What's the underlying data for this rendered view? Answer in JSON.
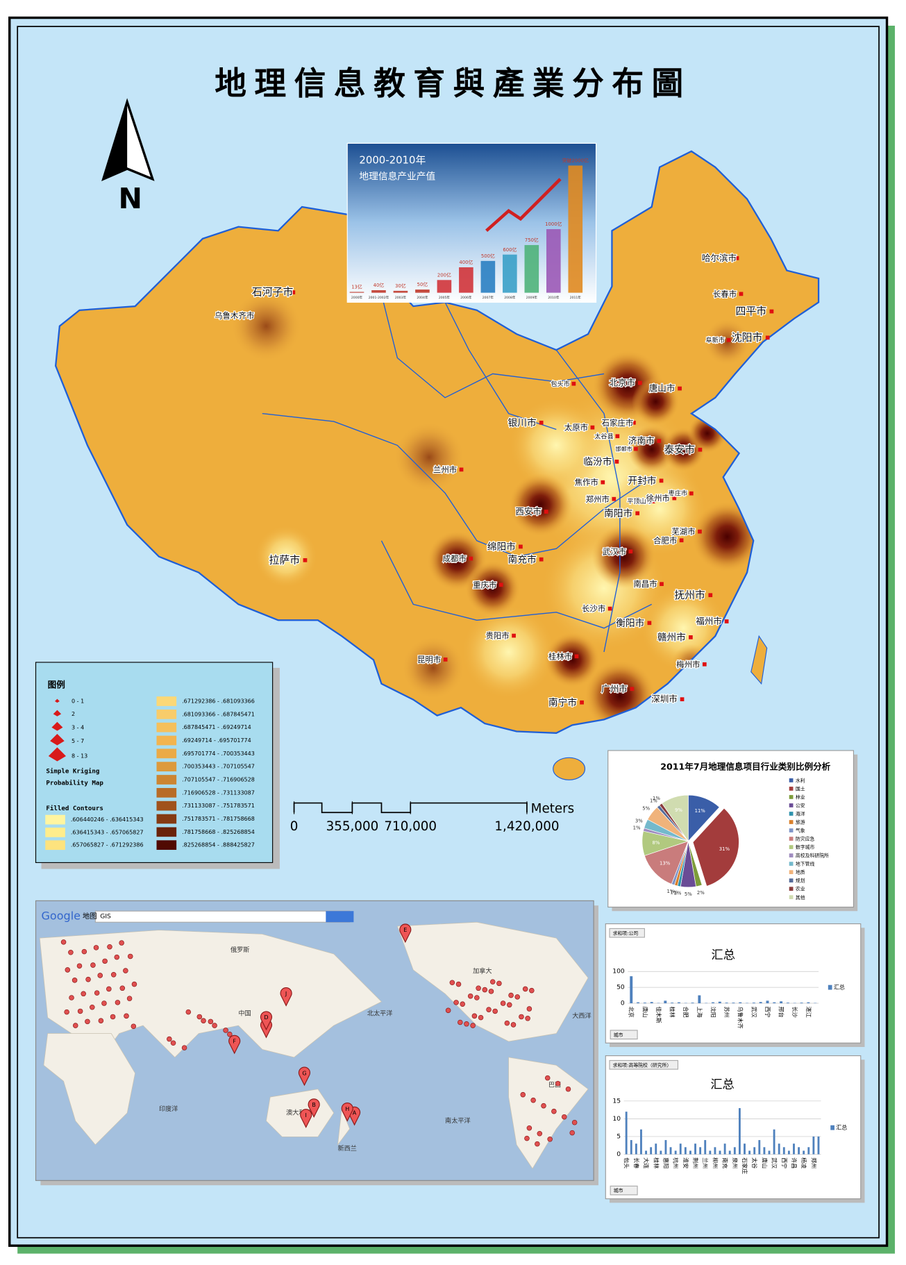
{
  "title": "地理信息教育與產業分布圖",
  "north": "N",
  "cities": [
    "石河子市",
    "乌鲁木齐市",
    "拉萨市",
    "哈尔滨市",
    "长春市",
    "四平市",
    "沈阳市",
    "阜新市",
    "北京市",
    "唐山市",
    "包头市",
    "银川市",
    "太原市",
    "石家庄市",
    "太谷县",
    "济南市",
    "邯郸市",
    "泰安市",
    "兰州市",
    "临汾市",
    "开封市",
    "焦作市",
    "郑州市",
    "平顶山市",
    "徐州市",
    "枣庄市",
    "西安市",
    "南阳市",
    "芜湖市",
    "成都市",
    "绵阳市",
    "南充市",
    "合肥市",
    "武汉市",
    "重庆市",
    "南昌市",
    "抚州市",
    "长沙市",
    "衡阳市",
    "福州市",
    "贵阳市",
    "赣州市",
    "昆明市",
    "桂林市",
    "梅州市",
    "广州市",
    "深圳市",
    "南宁市"
  ],
  "inset_output": {
    "title": "2000-2010年",
    "subtitle": "地理信息产业产值",
    "years": [
      "2000年",
      "2001-2002年",
      "2003年",
      "2004年",
      "2005年",
      "2006年",
      "2007年",
      "2008年",
      "2009年",
      "2010年",
      "2011年"
    ],
    "values": [
      13,
      40,
      30,
      50,
      200,
      400,
      500,
      600,
      750,
      1000,
      2000
    ],
    "value_labels": [
      "13亿",
      "40亿",
      "30亿",
      "50亿",
      "200亿",
      "400亿",
      "500亿",
      "600亿",
      "750亿",
      "1000亿",
      "突破2000亿"
    ]
  },
  "legend": {
    "title": "图例",
    "symbol_classes": [
      "0 - 1",
      "2",
      "3 - 4",
      "5 - 7",
      "8 - 13"
    ],
    "layer": [
      "Simple Kriging",
      "Probability Map"
    ],
    "contours_title": "Filled Contours",
    "contour_ranges": [
      ".606440246 - .636415343",
      ".636415343 - .657065827",
      ".657065827 - .671292386",
      ".671292386 - .681093366",
      ".681093366 - .687845471",
      ".687845471 - .69249714",
      ".69249714 - .695701774",
      ".695701774 - .700353443",
      ".700353443 - .707105547",
      ".707105547 - .716906528",
      ".716906528 - .731133087",
      ".731133087 - .751783571",
      ".751783571 - .781758668",
      ".781758668 - .825268854",
      ".825268854 - .888425827"
    ]
  },
  "scale_bar": {
    "unit": "Meters",
    "ticks": [
      0,
      {
        "value": 355000,
        "label": "355,000"
      },
      {
        "value": 710000,
        "label": "710,000"
      },
      {
        "value": 1420000,
        "label": "1,420,000"
      }
    ]
  },
  "pie_chart": {
    "title": "2011年7月地理信息项目行业类别比例分析",
    "categories": [
      "水利",
      "国土",
      "林业",
      "公安",
      "海洋",
      "旅游",
      "气象",
      "防灾应急",
      "数字城市",
      "高校及科研院所",
      "地下管线",
      "地质",
      "规划",
      "农业",
      "其他"
    ],
    "values": [
      11,
      31,
      2,
      5,
      1,
      1,
      1,
      13,
      8,
      1,
      3,
      5,
      1,
      1,
      9
    ],
    "value_labels": [
      "11%",
      "31%",
      "2%",
      "5%",
      "1%",
      "1%",
      "1%",
      "13%",
      "8%",
      "1%",
      "3%",
      "5%",
      "1%",
      "1%",
      "9%"
    ]
  },
  "bar_chart_company": {
    "filter": "求和项:公司",
    "title": "汇总",
    "legend": "汇总",
    "dropdown": "城市",
    "categories": [
      "北京",
      null,
      "唐山",
      null,
      "佳木斯",
      null,
      "桂林",
      null,
      "合肥",
      null,
      "上海",
      null,
      "沈阳",
      null,
      "苏州",
      null,
      "乌鲁木齐",
      null,
      "武汉",
      null,
      "西宁",
      null,
      "邢台",
      null,
      "长沙",
      null,
      "湛江",
      null
    ],
    "values": [
      85,
      3,
      2,
      4,
      1,
      8,
      2,
      3,
      1,
      2,
      25,
      1,
      3,
      5,
      2,
      2,
      3,
      1,
      2,
      4,
      8,
      3,
      6,
      2,
      1,
      2,
      3,
      1
    ],
    "ylim": [
      0,
      100
    ],
    "yticks": [
      0,
      50,
      100
    ]
  },
  "bar_chart_universities": {
    "filter": "求和项:高等院校（研究所）",
    "title": "汇总",
    "legend": "汇总",
    "dropdown": "城市",
    "categories": [
      "包头",
      null,
      "长春",
      null,
      "大连",
      null,
      "桂林",
      null,
      "惠阳",
      null,
      "杭州",
      null,
      "淮安",
      null,
      "荆州",
      null,
      "兰州",
      null,
      "柳州",
      null,
      "南充",
      null,
      "泉州",
      null,
      "石家庄",
      null,
      "太谷",
      null,
      "唐山",
      null,
      "武汉",
      null,
      "西宁",
      null,
      "许昌",
      null,
      "杨凌",
      null,
      "郑州",
      null
    ],
    "values": [
      12,
      4,
      3,
      7,
      1,
      2,
      3,
      1,
      4,
      2,
      1,
      3,
      2,
      1,
      3,
      2,
      4,
      1,
      2,
      1,
      3,
      1,
      2,
      13,
      3,
      1,
      2,
      4,
      2,
      1,
      7,
      3,
      2,
      1,
      3,
      2,
      1,
      2,
      5,
      5
    ],
    "ylim": [
      0,
      15
    ],
    "yticks": [
      0,
      5,
      10,
      15
    ]
  },
  "world_map": {
    "brand": "Google",
    "brand_sub": "地图",
    "search": "GIS",
    "labels": [
      "俄罗斯",
      "中国",
      "印度洋",
      "澳大利亚",
      "北太平洋",
      "南太平洋",
      "加拿大",
      "巴西",
      "大西洋",
      "新西兰"
    ],
    "markers": [
      "A",
      "B",
      "C",
      "D",
      "E",
      "F",
      "G",
      "H",
      "I",
      "J"
    ]
  }
}
